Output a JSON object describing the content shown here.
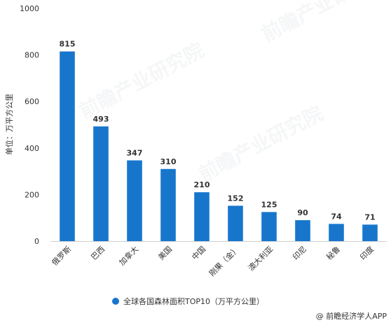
{
  "chart_data": {
    "type": "bar",
    "categories": [
      "俄罗斯",
      "巴西",
      "加拿大",
      "美国",
      "中国",
      "刚果（金）",
      "澳大利亚",
      "印尼",
      "秘鲁",
      "印度"
    ],
    "series": [
      {
        "name": "全球各国森林面积TOP10（万平方公里）",
        "values": [
          815,
          493,
          347,
          310,
          210,
          152,
          125,
          90,
          74,
          71
        ]
      }
    ],
    "ylabel": "单位：万平方公里",
    "ylim": [
      0,
      1000
    ],
    "yticks": [
      0,
      200,
      400,
      600,
      800,
      1000
    ],
    "grid": false,
    "legend_position": "bottom",
    "bar_color": "#1776cc"
  },
  "credit": "@ 前瞻经济学人APP",
  "watermark": "前瞻产业研究院"
}
